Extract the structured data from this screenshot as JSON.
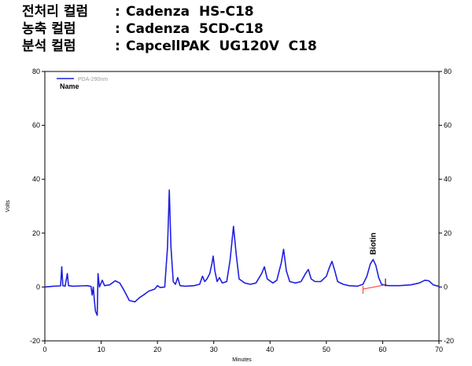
{
  "header": {
    "lines": [
      {
        "label": "전처리 컬럼",
        "colon": ":",
        "value": "Cadenza  HS-C18"
      },
      {
        "label": "농축 컬럼",
        "colon": ":",
        "value": "Cadenza  5CD-C18"
      },
      {
        "label": "분석 컬럼",
        "colon": ":",
        "value": "CapcellPAK  UG120V  C18"
      }
    ]
  },
  "chart_data": {
    "type": "line",
    "title": "",
    "xlabel": "Minutes",
    "ylabel": "Volts",
    "xlim": [
      0,
      70
    ],
    "ylim": [
      -20,
      80
    ],
    "x_ticks": [
      0,
      10,
      20,
      30,
      40,
      50,
      60,
      70
    ],
    "y_ticks": [
      -20,
      0,
      20,
      40,
      60,
      80
    ],
    "legend": {
      "position": "top-left",
      "entry": "PDA-290nm",
      "subtitle": "Name"
    },
    "series": [
      {
        "name": "PDA-290nm",
        "color": "#2020e0",
        "points": [
          [
            0,
            0
          ],
          [
            1.5,
            0.3
          ],
          [
            2.8,
            0.4
          ],
          [
            3.0,
            7.5
          ],
          [
            3.2,
            0.5
          ],
          [
            3.6,
            0.3
          ],
          [
            4.0,
            5
          ],
          [
            4.2,
            0.5
          ],
          [
            5,
            0.3
          ],
          [
            6.5,
            0.4
          ],
          [
            7.5,
            0.5
          ],
          [
            8.2,
            0.2
          ],
          [
            8.4,
            -3
          ],
          [
            8.6,
            0
          ],
          [
            8.8,
            -5
          ],
          [
            9.0,
            -9
          ],
          [
            9.3,
            -10.5
          ],
          [
            9.45,
            5
          ],
          [
            9.7,
            0
          ],
          [
            10.2,
            2.5
          ],
          [
            10.6,
            0.5
          ],
          [
            11.5,
            0.8
          ],
          [
            12.5,
            2.3
          ],
          [
            13.3,
            1.5
          ],
          [
            14.0,
            -1
          ],
          [
            15.0,
            -5
          ],
          [
            16.0,
            -5.5
          ],
          [
            16.8,
            -4
          ],
          [
            17.5,
            -3
          ],
          [
            18.5,
            -1.5
          ],
          [
            19.5,
            -0.8
          ],
          [
            20.0,
            0.5
          ],
          [
            20.5,
            -0.2
          ],
          [
            21.3,
            0
          ],
          [
            21.8,
            15
          ],
          [
            22.1,
            36
          ],
          [
            22.4,
            15
          ],
          [
            22.8,
            2
          ],
          [
            23.2,
            1
          ],
          [
            23.6,
            3.5
          ],
          [
            24.0,
            0.5
          ],
          [
            25,
            0.3
          ],
          [
            26.5,
            0.5
          ],
          [
            27.5,
            1
          ],
          [
            28.0,
            4
          ],
          [
            28.4,
            2
          ],
          [
            28.8,
            3
          ],
          [
            29.3,
            5
          ],
          [
            29.7,
            9
          ],
          [
            29.9,
            11.5
          ],
          [
            30.2,
            6
          ],
          [
            30.6,
            2
          ],
          [
            31.0,
            3.5
          ],
          [
            31.5,
            1.5
          ],
          [
            32.3,
            2
          ],
          [
            32.9,
            10
          ],
          [
            33.5,
            22.5
          ],
          [
            34.0,
            12
          ],
          [
            34.5,
            3
          ],
          [
            35.5,
            1.5
          ],
          [
            36.5,
            1
          ],
          [
            37.5,
            1.5
          ],
          [
            38.5,
            5
          ],
          [
            39.0,
            7.5
          ],
          [
            39.5,
            3
          ],
          [
            40.5,
            1.5
          ],
          [
            41.2,
            2.5
          ],
          [
            42.0,
            9
          ],
          [
            42.4,
            14
          ],
          [
            42.9,
            6
          ],
          [
            43.5,
            2
          ],
          [
            44.5,
            1.5
          ],
          [
            45.5,
            2
          ],
          [
            46.3,
            5
          ],
          [
            46.8,
            6.5
          ],
          [
            47.3,
            3
          ],
          [
            48.0,
            2
          ],
          [
            49.0,
            2
          ],
          [
            50.0,
            4
          ],
          [
            50.5,
            7
          ],
          [
            51.0,
            9.5
          ],
          [
            51.5,
            6
          ],
          [
            52.0,
            2
          ],
          [
            53.0,
            1
          ],
          [
            54.0,
            0.5
          ],
          [
            55.5,
            0.3
          ],
          [
            56.5,
            1
          ],
          [
            57.2,
            4
          ],
          [
            57.8,
            8.5
          ],
          [
            58.3,
            10.2
          ],
          [
            58.8,
            8
          ],
          [
            59.3,
            3.5
          ],
          [
            59.8,
            1
          ],
          [
            61,
            0.5
          ],
          [
            63,
            0.5
          ],
          [
            65,
            0.8
          ],
          [
            66.5,
            1.5
          ],
          [
            67.5,
            2.5
          ],
          [
            68.2,
            2.3
          ],
          [
            69,
            0.8
          ],
          [
            70,
            0.2
          ]
        ]
      }
    ],
    "annotations": [
      {
        "text": "Biotin",
        "x": 58.3,
        "y": 10.2,
        "rotation": -90
      },
      {
        "type": "baseline",
        "x_start": 56.5,
        "x_end": 60.5,
        "y_start": -0.8,
        "y_end": 0.8,
        "color": "#ff3030"
      }
    ]
  }
}
